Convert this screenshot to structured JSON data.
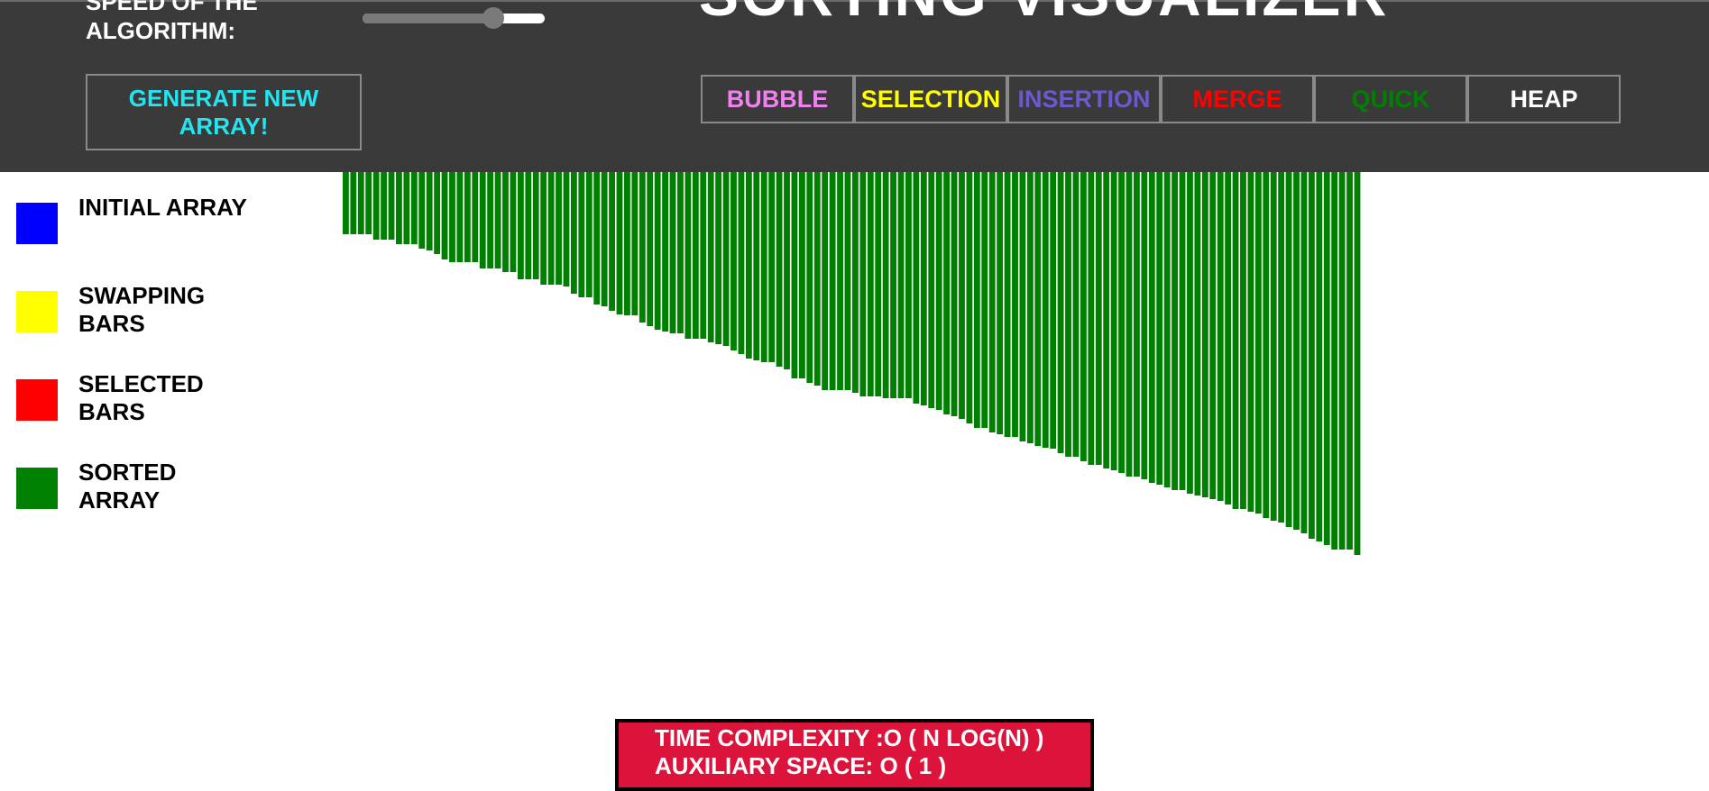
{
  "header": {
    "speed_label": "SPEED OF THE ALGORITHM:",
    "title": "SORTING VISUALIZER",
    "generate_label": "GENERATE NEW ARRAY!",
    "speed_value": 0.72
  },
  "algorithms": [
    {
      "label": "BUBBLE",
      "color": "#ee82ee"
    },
    {
      "label": "SELECTION",
      "color": "#ffff00"
    },
    {
      "label": "INSERTION",
      "color": "#6a5acd"
    },
    {
      "label": "MERGE",
      "color": "#ff0000"
    },
    {
      "label": "QUICK",
      "color": "#008000"
    },
    {
      "label": "HEAP",
      "color": "#ffffff"
    }
  ],
  "legend": [
    {
      "label": "INITIAL ARRAY",
      "color": "#0000ff"
    },
    {
      "label": "SWAPPING BARS",
      "color": "#ffff00"
    },
    {
      "label": "SELECTED BARS",
      "color": "#ff0000"
    },
    {
      "label": "SORTED ARRAY",
      "color": "#008000"
    }
  ],
  "complexity": {
    "time": "TIME COMPLEXITY :O ( N LOG(N) )",
    "space": "AUXILIARY SPACE: O ( 1 )"
  },
  "bars": {
    "color": "#008000",
    "values": [
      60,
      60,
      60,
      60,
      66,
      66,
      66,
      71,
      71,
      71,
      76,
      78,
      82,
      88,
      91,
      91,
      91,
      91,
      98,
      98,
      98,
      102,
      102,
      110,
      110,
      110,
      116,
      116,
      116,
      118,
      126,
      130,
      130,
      138,
      140,
      145,
      149,
      150,
      150,
      158,
      162,
      166,
      168,
      170,
      170,
      176,
      176,
      176,
      180,
      182,
      184,
      189,
      193,
      198,
      200,
      202,
      202,
      207,
      210,
      220,
      220,
      225,
      228,
      233,
      233,
      233,
      233,
      236,
      240,
      240,
      240,
      242,
      242,
      242,
      242,
      248,
      250,
      253,
      255,
      260,
      262,
      265,
      270,
      275,
      275,
      280,
      282,
      285,
      285,
      290,
      292,
      295,
      297,
      298,
      303,
      307,
      307,
      312,
      316,
      316,
      320,
      322,
      325,
      329,
      329,
      332,
      336,
      338,
      341,
      344,
      344,
      348,
      350,
      352,
      354,
      356,
      360,
      365,
      365,
      368,
      370,
      375,
      378,
      380,
      385,
      388,
      392,
      398,
      401,
      405,
      410,
      410,
      410,
      416
    ]
  }
}
